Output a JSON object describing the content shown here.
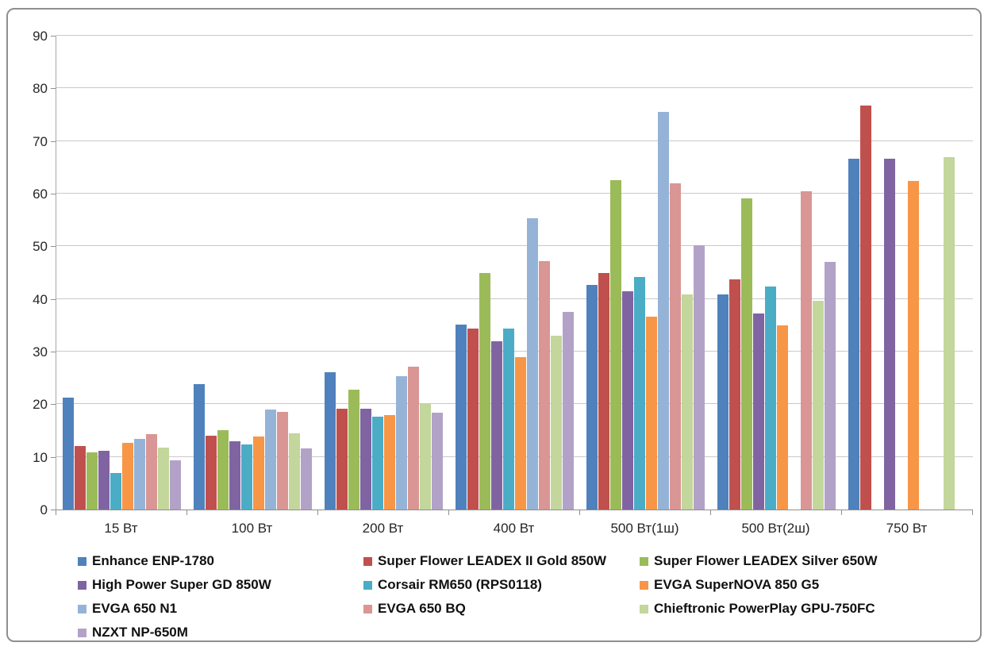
{
  "window": {
    "background": "#ffffff",
    "border_color": "#8f8f8f"
  },
  "axis_style": {
    "gridline_color": "#c9c9c9",
    "axis_color": "#8f8f8f",
    "label_color": "#262626"
  },
  "chart_data": {
    "type": "bar",
    "title": "",
    "xlabel": "",
    "ylabel": "",
    "ylim": [
      0,
      90
    ],
    "ytick_step": 10,
    "ytick_labels": [
      "0",
      "10",
      "20",
      "30",
      "40",
      "50",
      "60",
      "70",
      "80",
      "90"
    ],
    "grid": "horizontal",
    "legend_position": "bottom",
    "legend_columns": 3,
    "categories": [
      "15 Вт",
      "100 Вт",
      "200 Вт",
      "400 Вт",
      "500 Вт(1ш)",
      "500 Вт(2ш)",
      "750 Вт"
    ],
    "series": [
      {
        "name": "Enhance ENP-1780",
        "color": "#4F81BD",
        "values": [
          21.2,
          23.8,
          26.1,
          35.2,
          42.6,
          40.8,
          66.7
        ]
      },
      {
        "name": "Super Flower LEADEX II Gold 850W",
        "color": "#C0504D",
        "values": [
          12.0,
          14.0,
          19.1,
          34.4,
          45.0,
          43.7,
          76.7
        ]
      },
      {
        "name": "Super Flower LEADEX Silver 650W",
        "color": "#9BBB59",
        "values": [
          10.9,
          15.1,
          22.8,
          45.0,
          62.5,
          59.1,
          null
        ]
      },
      {
        "name": "High Power Super GD 850W",
        "color": "#8064A2",
        "values": [
          11.2,
          13.0,
          19.2,
          31.9,
          41.5,
          37.3,
          66.6
        ]
      },
      {
        "name": "Corsair RM650 (RPS0118)",
        "color": "#4BACC6",
        "values": [
          7.0,
          12.4,
          17.6,
          34.4,
          44.2,
          42.4,
          null
        ]
      },
      {
        "name": "EVGA SuperNOVA 850 G5",
        "color": "#F79646",
        "values": [
          12.7,
          13.9,
          17.9,
          29.0,
          36.7,
          35.0,
          62.4
        ]
      },
      {
        "name": "EVGA 650 N1",
        "color": "#95B3D7",
        "values": [
          13.4,
          19.0,
          25.4,
          55.3,
          75.6,
          null,
          null
        ]
      },
      {
        "name": "EVGA 650 BQ",
        "color": "#D99694",
        "values": [
          14.3,
          18.6,
          27.2,
          47.2,
          61.9,
          60.4,
          null
        ]
      },
      {
        "name": "Chieftronic PowerPlay GPU-750FC",
        "color": "#C3D69B",
        "values": [
          11.7,
          14.5,
          20.1,
          33.0,
          40.9,
          39.6,
          67.0
        ]
      },
      {
        "name": "NZXT NP-650M",
        "color": "#B2A2C7",
        "values": [
          9.4,
          11.6,
          18.4,
          37.6,
          50.2,
          47.0,
          null
        ]
      }
    ]
  }
}
